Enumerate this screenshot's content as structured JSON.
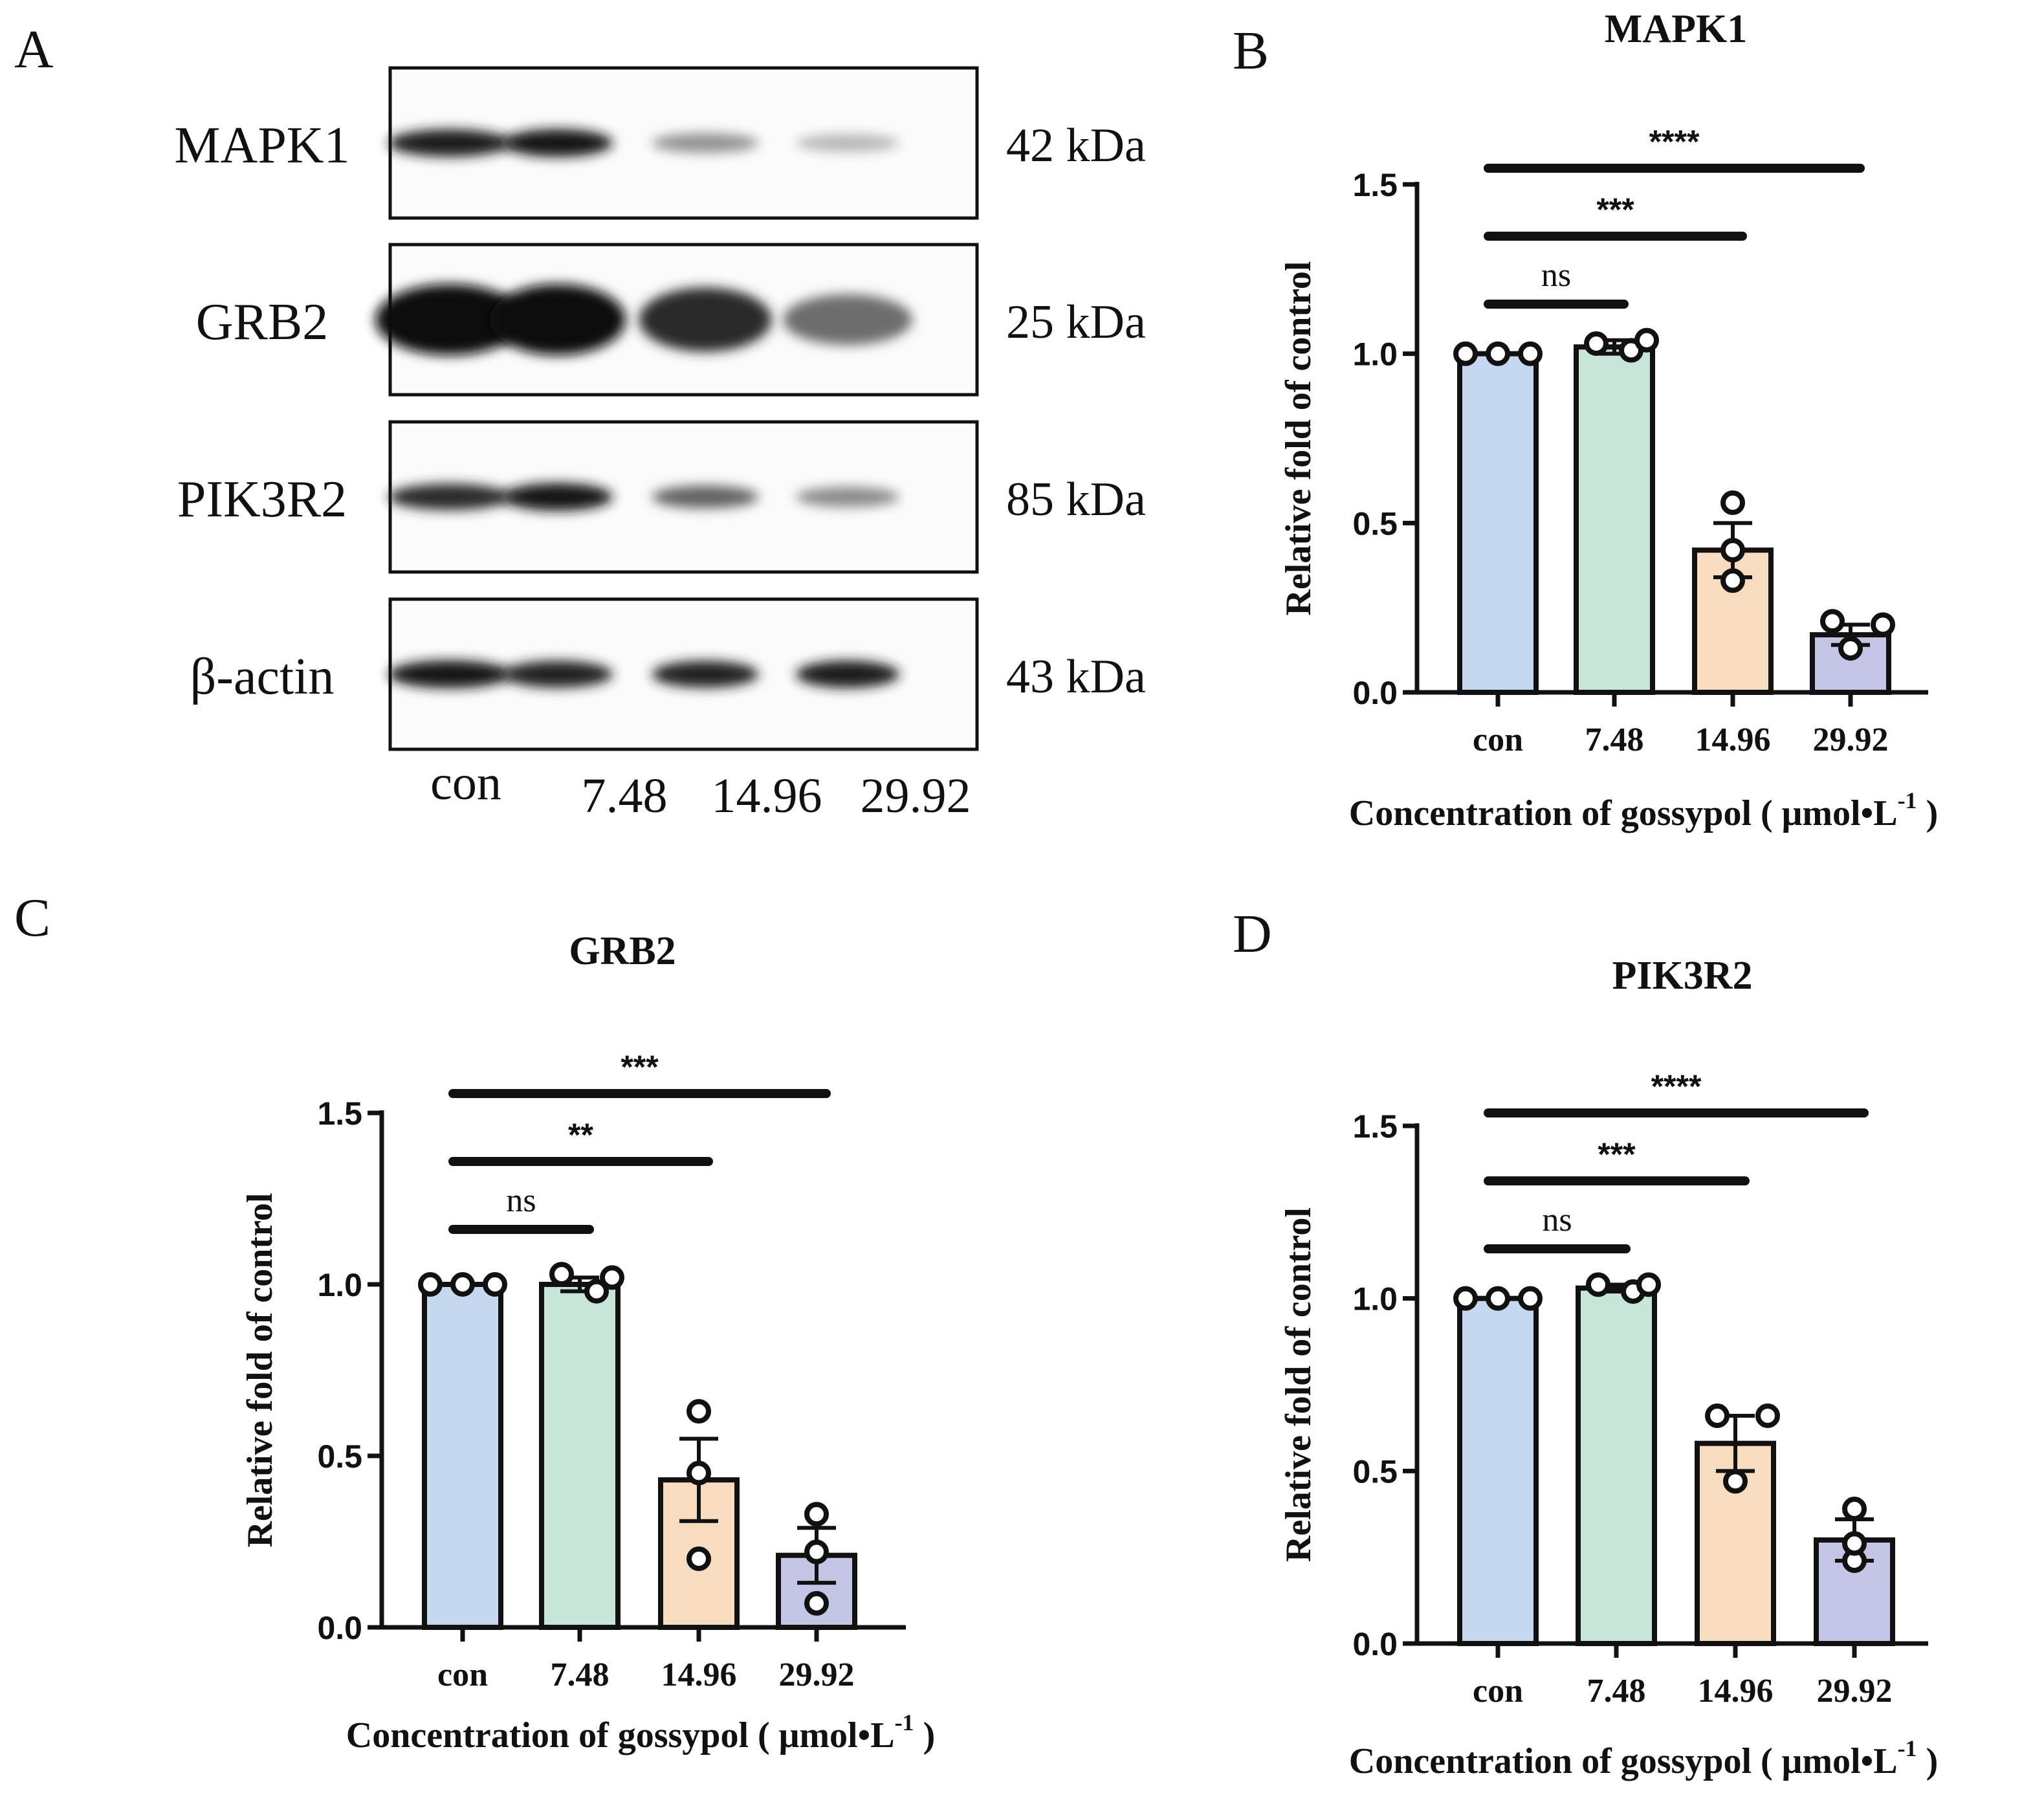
{
  "panels": {
    "A": "A",
    "B": "B",
    "C": "C",
    "D": "D"
  },
  "western_blot": {
    "rows": [
      {
        "protein": "MAPK1",
        "kda": "42 kDa",
        "intensity": [
          0.92,
          0.95,
          0.38,
          0.22
        ]
      },
      {
        "protein": "GRB2",
        "kda": "25 kDa",
        "intensity": [
          1.0,
          1.0,
          0.85,
          0.55
        ]
      },
      {
        "protein": "PIK3R2",
        "kda": "85 kDa",
        "intensity": [
          0.85,
          0.95,
          0.6,
          0.42
        ]
      },
      {
        "protein": "β-actin",
        "kda": "43 kDa",
        "intensity": [
          0.95,
          0.9,
          0.9,
          0.92
        ]
      }
    ],
    "lanes": [
      "con",
      "7.48",
      "14.96",
      "29.92"
    ]
  },
  "colors": {
    "con": "#c5d8f0",
    "c748": "#c8e6d8",
    "c1496": "#f8dcc0",
    "c2992": "#c4c4e4"
  },
  "chart_data": [
    {
      "type": "bar",
      "panel": "B",
      "title": "MAPK1",
      "xlabel": "Concentration of gossypol ( μmol•L",
      "xlabel_sup": "-1",
      "xlabel_tail": " )",
      "ylabel": "Relative fold of control",
      "ylim": [
        0,
        1.5
      ],
      "yticks": [
        "0.0",
        "0.5",
        "1.0",
        "1.5"
      ],
      "categories": [
        "con",
        "7.48",
        "14.96",
        "29.92"
      ],
      "values": [
        1.0,
        1.02,
        0.42,
        0.17
      ],
      "sem": [
        0.0,
        0.02,
        0.08,
        0.03
      ],
      "points": [
        [
          1.0,
          1.0,
          1.0
        ],
        [
          1.03,
          1.01,
          1.04
        ],
        [
          0.56,
          0.33,
          0.42
        ],
        [
          0.21,
          0.13,
          0.2
        ]
      ],
      "significance": [
        {
          "from": 0,
          "to": 1,
          "label": "ns"
        },
        {
          "from": 0,
          "to": 2,
          "label": "***"
        },
        {
          "from": 0,
          "to": 3,
          "label": "****"
        }
      ]
    },
    {
      "type": "bar",
      "panel": "C",
      "title": "GRB2",
      "xlabel": "Concentration of gossypol ( μmol•L",
      "xlabel_sup": "-1",
      "xlabel_tail": " )",
      "ylabel": "Relative fold of control",
      "ylim": [
        0,
        1.5
      ],
      "yticks": [
        "0.0",
        "0.5",
        "1.0",
        "1.5"
      ],
      "categories": [
        "con",
        "7.48",
        "14.96",
        "29.92"
      ],
      "values": [
        1.0,
        1.0,
        0.43,
        0.21
      ],
      "sem": [
        0.0,
        0.02,
        0.12,
        0.08
      ],
      "points": [
        [
          1.0,
          1.0,
          1.0
        ],
        [
          1.03,
          0.98,
          1.02
        ],
        [
          0.63,
          0.2,
          0.45
        ],
        [
          0.33,
          0.07,
          0.22
        ]
      ],
      "significance": [
        {
          "from": 0,
          "to": 1,
          "label": "ns"
        },
        {
          "from": 0,
          "to": 2,
          "label": "**"
        },
        {
          "from": 0,
          "to": 3,
          "label": "***"
        }
      ]
    },
    {
      "type": "bar",
      "panel": "D",
      "title": "PIK3R2",
      "xlabel": "Concentration of gossypol ( μmol•L",
      "xlabel_sup": "-1",
      "xlabel_tail": " )",
      "ylabel": "Relative fold of control",
      "ylim": [
        0,
        1.5
      ],
      "yticks": [
        "0.0",
        "0.5",
        "1.0",
        "1.5"
      ],
      "categories": [
        "con",
        "7.48",
        "14.96",
        "29.92"
      ],
      "values": [
        1.0,
        1.03,
        0.58,
        0.3
      ],
      "sem": [
        0.0,
        0.01,
        0.08,
        0.06
      ],
      "points": [
        [
          1.0,
          1.0,
          1.0
        ],
        [
          1.04,
          1.02,
          1.04
        ],
        [
          0.66,
          0.47,
          0.66
        ],
        [
          0.39,
          0.24,
          0.29
        ]
      ],
      "significance": [
        {
          "from": 0,
          "to": 1,
          "label": "ns"
        },
        {
          "from": 0,
          "to": 2,
          "label": "***"
        },
        {
          "from": 0,
          "to": 3,
          "label": "****"
        }
      ]
    }
  ]
}
